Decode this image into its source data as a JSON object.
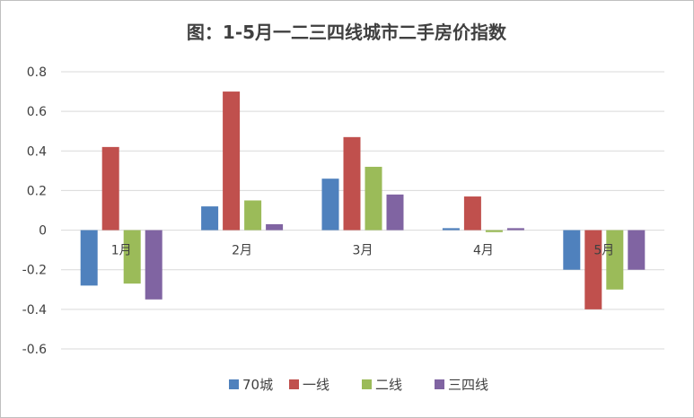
{
  "chart_data": {
    "type": "bar",
    "title": "图：1-5月一二三四线城市二手房价指数",
    "xlabel": "",
    "ylabel": "",
    "categories": [
      "1月",
      "2月",
      "3月",
      "4月",
      "5月"
    ],
    "ylim": [
      -0.6,
      0.8
    ],
    "yticks": [
      "0.8",
      "0.6",
      "0.4",
      "0.2",
      "0",
      "-0.2",
      "-0.4",
      "-0.6"
    ],
    "grid": true,
    "legend_position": "bottom",
    "series": [
      {
        "name": "70城",
        "color": "#4f81bd",
        "values": [
          -0.28,
          0.12,
          0.26,
          0.01,
          -0.2
        ]
      },
      {
        "name": "一线",
        "color": "#c0504d",
        "values": [
          0.42,
          0.7,
          0.47,
          0.17,
          -0.4
        ]
      },
      {
        "name": "二线",
        "color": "#9bbb59",
        "values": [
          -0.27,
          0.15,
          0.32,
          -0.01,
          -0.3
        ]
      },
      {
        "name": "三四线",
        "color": "#8064a2",
        "values": [
          -0.35,
          0.03,
          0.18,
          0.01,
          -0.2
        ]
      }
    ]
  }
}
